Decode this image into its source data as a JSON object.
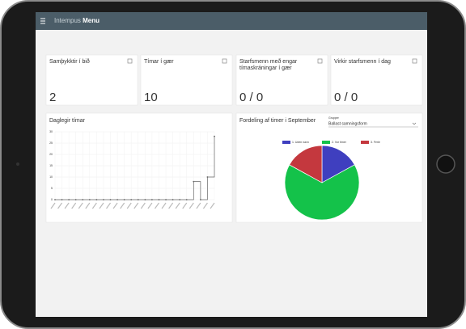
{
  "app": {
    "brand": "Intempus",
    "menu": "Menu"
  },
  "cards": [
    {
      "title": "Samþykktir í bið",
      "value": "2"
    },
    {
      "title": "Tímar í gær",
      "value": "10"
    },
    {
      "title": "Starfsmenn með engar tímaskráningar í gær",
      "value": "0 / 0"
    },
    {
      "title": "Virkir starfsmenn í dag",
      "value": "0 / 0"
    }
  ],
  "chart_data": [
    {
      "type": "line",
      "title": "Daglegir tímar",
      "step": true,
      "color": "#666666",
      "categories": [
        null,
        null,
        null,
        null,
        null,
        null,
        null,
        null,
        null,
        null,
        null,
        null,
        null,
        null,
        null,
        null,
        null,
        null,
        null,
        null,
        null,
        null,
        null,
        null
      ],
      "values": [
        0,
        0,
        0,
        0,
        0,
        0,
        0,
        0,
        0,
        0,
        0,
        0,
        0,
        0,
        0,
        0,
        0,
        0,
        0,
        0,
        8,
        0,
        10,
        28
      ],
      "ylim": [
        0,
        30
      ],
      "yticks": [
        0,
        5,
        10,
        15,
        20,
        25,
        30
      ],
      "grid": true
    },
    {
      "type": "pie",
      "title": "Fordeling af timer i September",
      "select_label": "Grupper",
      "select_value": "Ballast samningsform",
      "series": [
        {
          "name": "1. Uden navn",
          "color": "#3f3fbf",
          "value": 17
        },
        {
          "name": "2. Vor timer",
          "color": "#14c24a",
          "value": 66
        },
        {
          "name": "3. Ferie",
          "color": "#c4383e",
          "value": 17
        }
      ]
    }
  ]
}
